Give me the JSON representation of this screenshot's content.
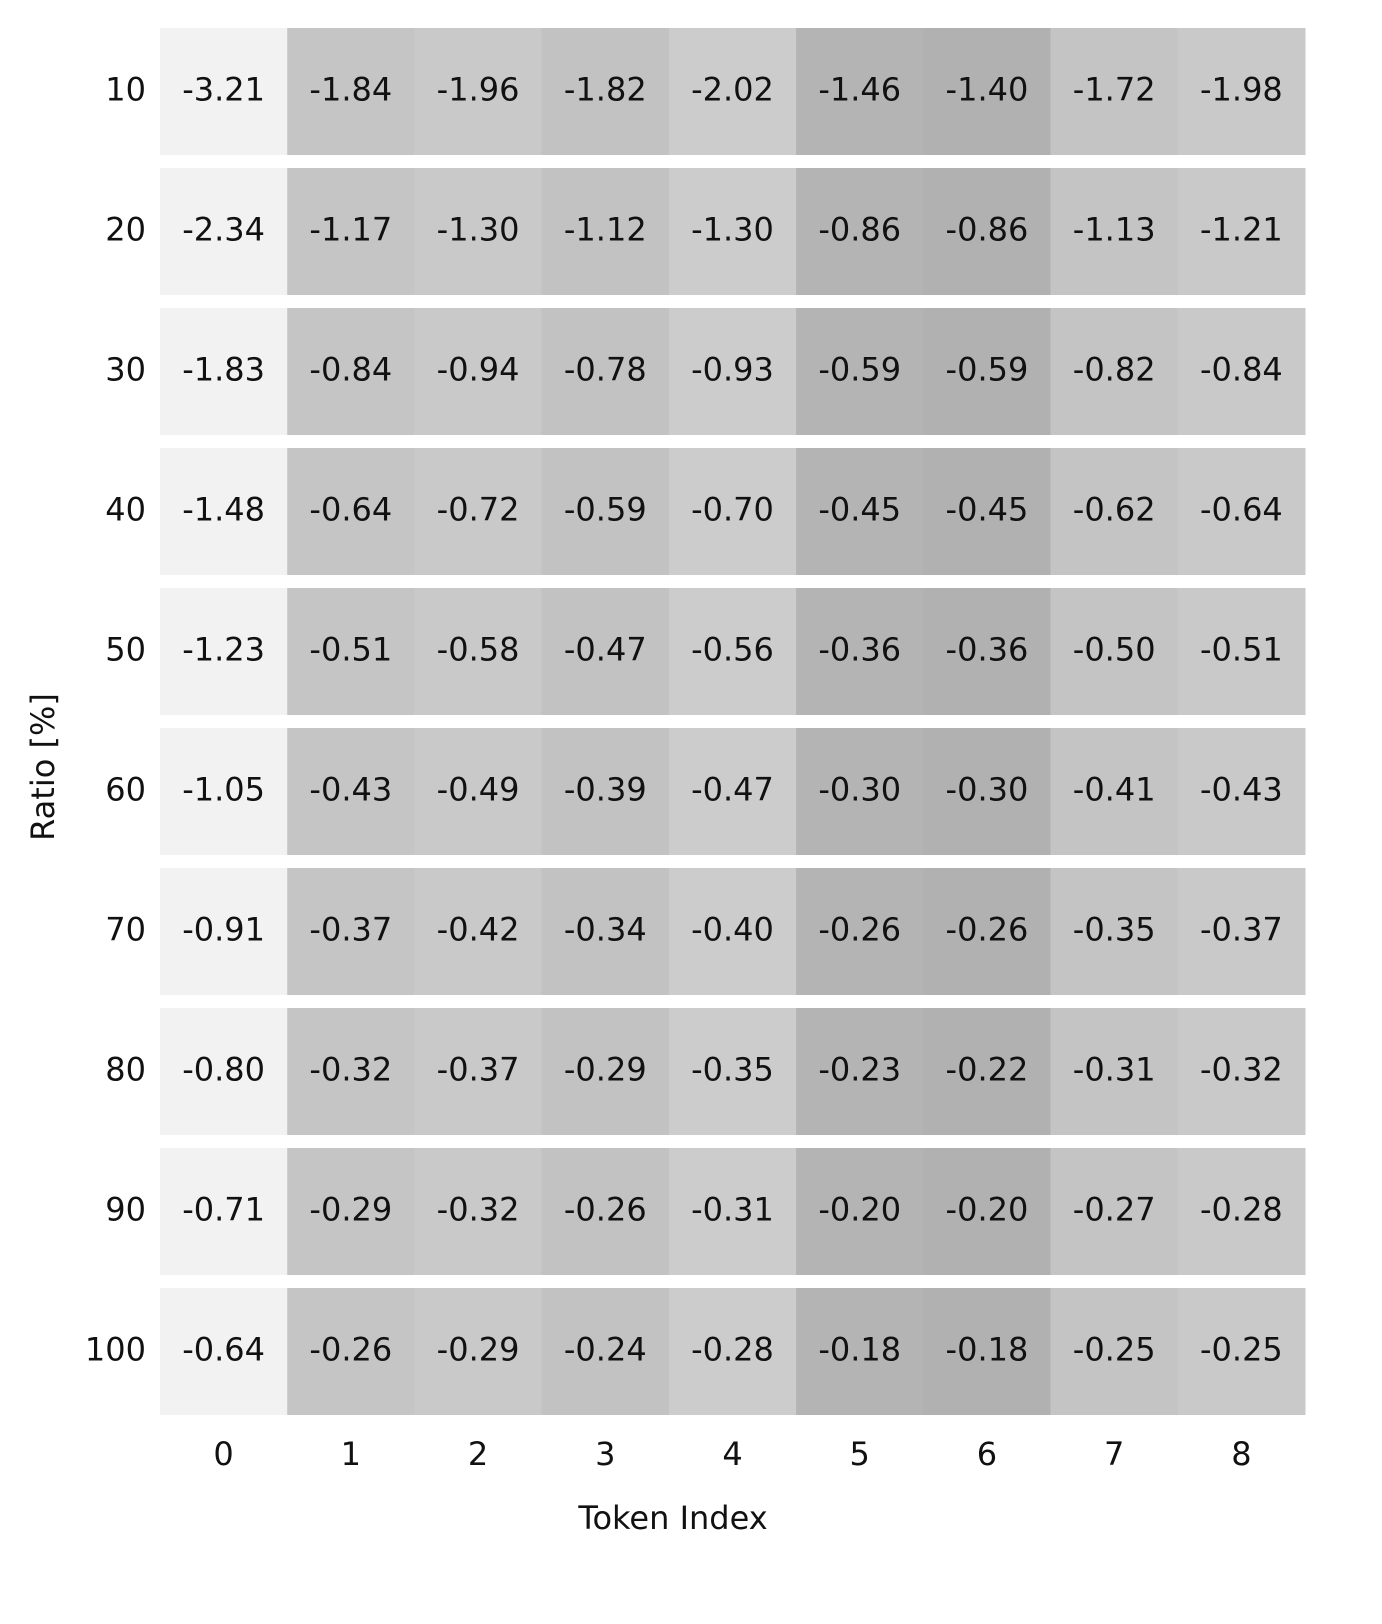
{
  "chart_data": {
    "type": "heatmap",
    "xlabel": "Token Index",
    "ylabel": "Ratio [%]",
    "x_categories": [
      0,
      1,
      2,
      3,
      4,
      5,
      6,
      7,
      8
    ],
    "y_categories": [
      10,
      20,
      30,
      40,
      50,
      60,
      70,
      80,
      90,
      100
    ],
    "column_colors": [
      "#f2f2f2",
      "#c5c5c5",
      "#c9c9c9",
      "#c2c2c2",
      "#cccccc",
      "#b4b4b4",
      "#b1b1b1",
      "#c4c4c4",
      "#c9c9c9"
    ],
    "values": [
      [
        -3.21,
        -1.84,
        -1.96,
        -1.82,
        -2.02,
        -1.46,
        -1.4,
        -1.72,
        -1.98
      ],
      [
        -2.34,
        -1.17,
        -1.3,
        -1.12,
        -1.3,
        -0.86,
        -0.86,
        -1.13,
        -1.21
      ],
      [
        -1.83,
        -0.84,
        -0.94,
        -0.78,
        -0.93,
        -0.59,
        -0.59,
        -0.82,
        -0.84
      ],
      [
        -1.48,
        -0.64,
        -0.72,
        -0.59,
        -0.7,
        -0.45,
        -0.45,
        -0.62,
        -0.64
      ],
      [
        -1.23,
        -0.51,
        -0.58,
        -0.47,
        -0.56,
        -0.36,
        -0.36,
        -0.5,
        -0.51
      ],
      [
        -1.05,
        -0.43,
        -0.49,
        -0.39,
        -0.47,
        -0.3,
        -0.3,
        -0.41,
        -0.43
      ],
      [
        -0.91,
        -0.37,
        -0.42,
        -0.34,
        -0.4,
        -0.26,
        -0.26,
        -0.35,
        -0.37
      ],
      [
        -0.8,
        -0.32,
        -0.37,
        -0.29,
        -0.35,
        -0.23,
        -0.22,
        -0.31,
        -0.32
      ],
      [
        -0.71,
        -0.29,
        -0.32,
        -0.26,
        -0.31,
        -0.2,
        -0.2,
        -0.27,
        -0.28
      ],
      [
        -0.64,
        -0.26,
        -0.29,
        -0.24,
        -0.28,
        -0.18,
        -0.18,
        -0.25,
        -0.25
      ]
    ],
    "value_labels": [
      [
        "-3.21",
        "-1.84",
        "-1.96",
        "-1.82",
        "-2.02",
        "-1.46",
        "-1.40",
        "-1.72",
        "-1.98"
      ],
      [
        "-2.34",
        "-1.17",
        "-1.30",
        "-1.12",
        "-1.30",
        "-0.86",
        "-0.86",
        "-1.13",
        "-1.21"
      ],
      [
        "-1.83",
        "-0.84",
        "-0.94",
        "-0.78",
        "-0.93",
        "-0.59",
        "-0.59",
        "-0.82",
        "-0.84"
      ],
      [
        "-1.48",
        "-0.64",
        "-0.72",
        "-0.59",
        "-0.70",
        "-0.45",
        "-0.45",
        "-0.62",
        "-0.64"
      ],
      [
        "-1.23",
        "-0.51",
        "-0.58",
        "-0.47",
        "-0.56",
        "-0.36",
        "-0.36",
        "-0.50",
        "-0.51"
      ],
      [
        "-1.05",
        "-0.43",
        "-0.49",
        "-0.39",
        "-0.47",
        "-0.30",
        "-0.30",
        "-0.41",
        "-0.43"
      ],
      [
        "-0.91",
        "-0.37",
        "-0.42",
        "-0.34",
        "-0.40",
        "-0.26",
        "-0.26",
        "-0.35",
        "-0.37"
      ],
      [
        "-0.80",
        "-0.32",
        "-0.37",
        "-0.29",
        "-0.35",
        "-0.23",
        "-0.22",
        "-0.31",
        "-0.32"
      ],
      [
        "-0.71",
        "-0.29",
        "-0.32",
        "-0.26",
        "-0.31",
        "-0.20",
        "-0.20",
        "-0.27",
        "-0.28"
      ],
      [
        "-0.64",
        "-0.26",
        "-0.29",
        "-0.24",
        "-0.28",
        "-0.18",
        "-0.18",
        "-0.25",
        "-0.25"
      ]
    ]
  }
}
